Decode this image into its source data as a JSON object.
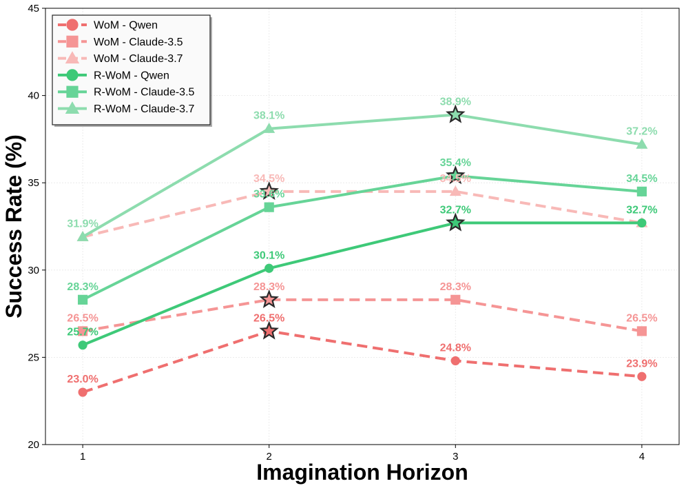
{
  "chart_data": {
    "type": "line",
    "title": "",
    "xlabel": "Imagination Horizon",
    "ylabel": "Success Rate (%)",
    "x": [
      1,
      2,
      3,
      4
    ],
    "xlim": [
      0.8,
      4.2
    ],
    "ylim": [
      20,
      45
    ],
    "yticks": [
      20,
      25,
      30,
      35,
      40,
      45
    ],
    "grid": true,
    "legend_position": "top-left",
    "series": [
      {
        "name": "WoM - Qwen",
        "values": [
          23.0,
          26.5,
          24.8,
          23.9
        ],
        "labels": [
          "23.0%",
          "26.5%",
          "24.8%",
          "23.9%"
        ],
        "color": "#ef6f6f",
        "marker": "circle",
        "dash": true,
        "best_index": 1
      },
      {
        "name": "WoM - Claude-3.5",
        "values": [
          26.5,
          28.3,
          28.3,
          26.5
        ],
        "labels": [
          "26.5%",
          "28.3%",
          "28.3%",
          "26.5%"
        ],
        "color": "#f59595",
        "marker": "square",
        "dash": true,
        "best_index": 1
      },
      {
        "name": "WoM - Claude-3.7",
        "values": [
          31.9,
          34.5,
          34.5,
          32.7
        ],
        "labels": [
          "",
          "34.5%",
          "34.5%",
          ""
        ],
        "color": "#f8b9b7",
        "marker": "triangle",
        "dash": true,
        "best_index": 1
      },
      {
        "name": "R-WoM - Qwen",
        "values": [
          25.7,
          30.1,
          32.7,
          32.7
        ],
        "labels": [
          "25.7%",
          "30.1%",
          "32.7%",
          "32.7%"
        ],
        "color": "#3ec978",
        "marker": "circle",
        "dash": false,
        "best_index": 2
      },
      {
        "name": "R-WoM - Claude-3.5",
        "values": [
          28.3,
          33.6,
          35.4,
          34.5
        ],
        "labels": [
          "28.3%",
          "33.6%",
          "35.4%",
          "34.5%"
        ],
        "color": "#66d497",
        "marker": "square",
        "dash": false,
        "best_index": 2
      },
      {
        "name": "R-WoM - Claude-3.7",
        "values": [
          31.9,
          38.1,
          38.9,
          37.2
        ],
        "labels": [
          "31.9%",
          "38.1%",
          "38.9%",
          "37.2%"
        ],
        "color": "#8ddcae",
        "marker": "triangle",
        "dash": false,
        "best_index": 2
      }
    ]
  }
}
